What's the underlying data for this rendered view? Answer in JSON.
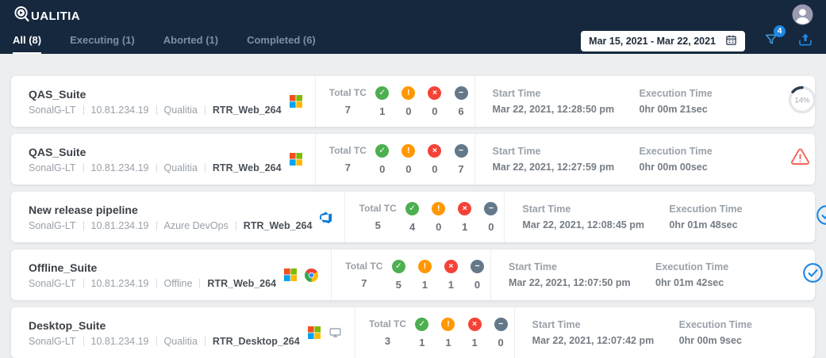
{
  "brand": {
    "wordmark": "UALITIA",
    "full_name": "QUALITIA"
  },
  "tabs": [
    {
      "label": "All (8)",
      "active": true
    },
    {
      "label": "Executing (1)",
      "active": false
    },
    {
      "label": "Aborted (1)",
      "active": false
    },
    {
      "label": "Completed (6)",
      "active": false
    }
  ],
  "toolbar": {
    "date_range": "Mar 15, 2021 - Mar 22, 2021",
    "filter_count": "4"
  },
  "labels": {
    "total_tc": "Total TC",
    "start_time": "Start Time",
    "execution_time": "Execution Time"
  },
  "colors": {
    "accent": "#1e88e5",
    "passed": "#4caf50",
    "warning": "#ff9800",
    "failed": "#f44336",
    "not_executed": "#64788a",
    "aborted": "#f2645a",
    "success_dark": "#43a047",
    "progress_arc": "#2e3f55",
    "brand_dark": "#16283e"
  },
  "cards": [
    {
      "title": "QAS_Suite",
      "meta": [
        "SonalG-LT",
        "10.81.234.19",
        "Qualitia"
      ],
      "run_label": "RTR_Web_264",
      "platform_icons": [
        "windows"
      ],
      "stats": {
        "total": "7",
        "passed": "1",
        "warning": "0",
        "failed": "0",
        "not_executed": "6"
      },
      "start_time": "Mar 22, 2021, 12:28:50 pm",
      "execution_time": "0hr 00m 21sec",
      "status": {
        "type": "progress",
        "percent": 14,
        "label": "14%"
      }
    },
    {
      "title": "QAS_Suite",
      "meta": [
        "SonalG-LT",
        "10.81.234.19",
        "Qualitia"
      ],
      "run_label": "RTR_Web_264",
      "platform_icons": [
        "windows"
      ],
      "stats": {
        "total": "7",
        "passed": "0",
        "warning": "0",
        "failed": "0",
        "not_executed": "7"
      },
      "start_time": "Mar 22, 2021, 12:27:59 pm",
      "execution_time": "0hr 00m 00sec",
      "status": {
        "type": "aborted"
      }
    },
    {
      "title": "New release pipeline",
      "meta": [
        "SonalG-LT",
        "10.81.234.19",
        "Azure DevOps"
      ],
      "run_label": "RTR_Web_264",
      "platform_icons": [
        "azure-devops"
      ],
      "stats": {
        "total": "5",
        "passed": "4",
        "warning": "0",
        "failed": "1",
        "not_executed": "0"
      },
      "start_time": "Mar 22, 2021, 12:08:45 pm",
      "execution_time": "0hr 01m 48sec",
      "status": {
        "type": "check",
        "color_key": "accent"
      }
    },
    {
      "title": "Offline_Suite",
      "meta": [
        "SonalG-LT",
        "10.81.234.19",
        "Offline"
      ],
      "run_label": "RTR_Web_264",
      "platform_icons": [
        "windows",
        "chrome"
      ],
      "stats": {
        "total": "7",
        "passed": "5",
        "warning": "1",
        "failed": "1",
        "not_executed": "0"
      },
      "start_time": "Mar 22, 2021, 12:07:50 pm",
      "execution_time": "0hr 01m 42sec",
      "status": {
        "type": "check",
        "color_key": "accent"
      }
    },
    {
      "title": "Desktop_Suite",
      "meta": [
        "SonalG-LT",
        "10.81.234.19",
        "Qualitia"
      ],
      "run_label": "RTR_Desktop_264",
      "platform_icons": [
        "windows",
        "desktop"
      ],
      "stats": {
        "total": "3",
        "passed": "1",
        "warning": "1",
        "failed": "1",
        "not_executed": "0"
      },
      "start_time": "Mar 22, 2021, 12:07:42 pm",
      "execution_time": "0hr 00m 9sec",
      "status": {
        "type": "check",
        "color_key": "success_dark"
      }
    }
  ]
}
